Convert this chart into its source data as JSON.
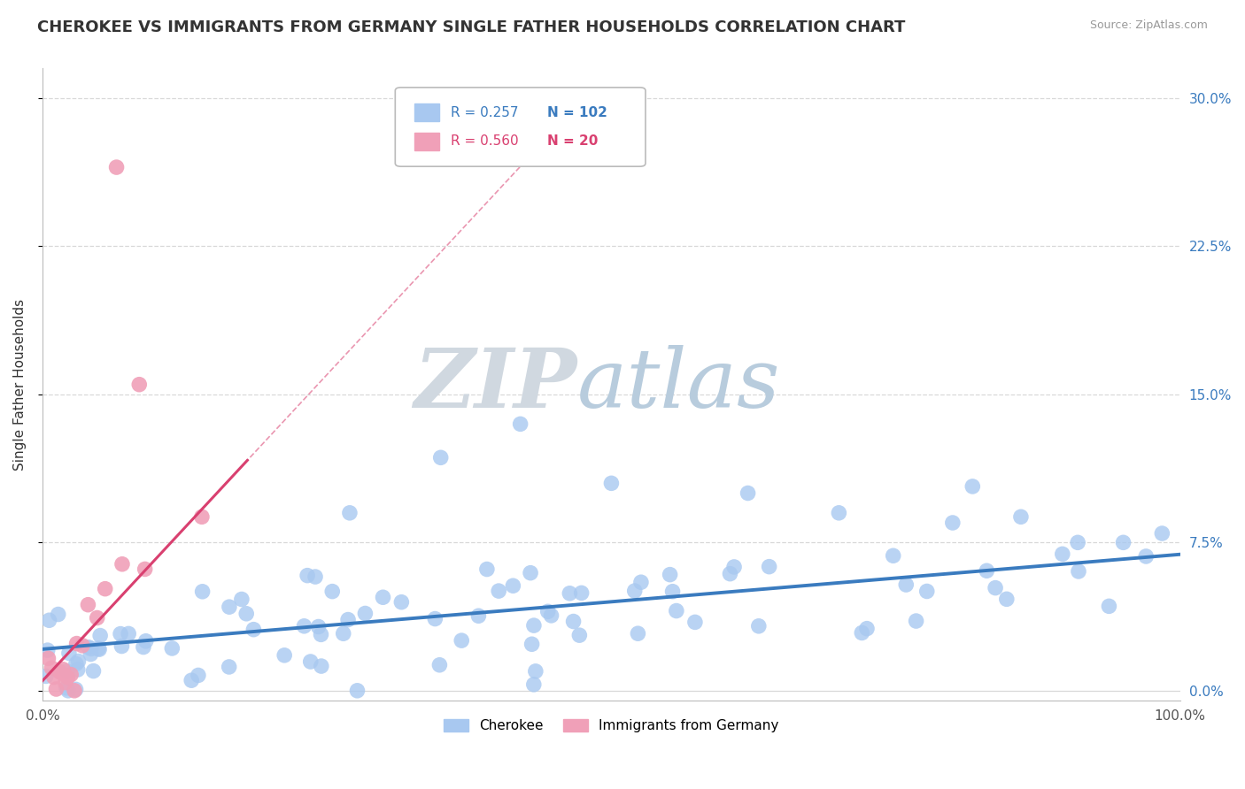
{
  "title": "CHEROKEE VS IMMIGRANTS FROM GERMANY SINGLE FATHER HOUSEHOLDS CORRELATION CHART",
  "source": "Source: ZipAtlas.com",
  "ylabel": "Single Father Households",
  "xlim": [
    0.0,
    1.0
  ],
  "ylim": [
    -0.005,
    0.315
  ],
  "ytick_vals": [
    0.0,
    0.075,
    0.15,
    0.225,
    0.3
  ],
  "ytick_labels": [
    "0.0%",
    "7.5%",
    "15.0%",
    "22.5%",
    "30.0%"
  ],
  "xtick_vals": [
    0.0,
    1.0
  ],
  "xtick_labels": [
    "0.0%",
    "100.0%"
  ],
  "blue_color": "#a8c8f0",
  "pink_color": "#f0a0b8",
  "blue_line_color": "#3a7bbf",
  "pink_line_color": "#d94070",
  "grid_color": "#d8d8d8",
  "background_color": "#ffffff",
  "watermark_zip": "ZIP",
  "watermark_atlas": "atlas",
  "legend_R_blue": "0.257",
  "legend_N_blue": "102",
  "legend_R_pink": "0.560",
  "legend_N_pink": "20",
  "blue_intercept": 0.021,
  "blue_slope": 0.048,
  "pink_intercept": 0.005,
  "pink_slope": 0.62,
  "pink_dash_slope": 0.62,
  "title_fontsize": 13,
  "label_fontsize": 11,
  "tick_fontsize": 11,
  "legend_fontsize": 11
}
